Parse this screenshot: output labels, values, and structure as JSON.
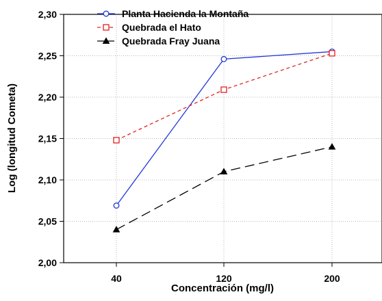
{
  "chart_data": {
    "type": "line",
    "xlabel": "Concentración (mg/l)",
    "ylabel": "Log (longitud Cometa)",
    "categories": [
      "40",
      "120",
      "200"
    ],
    "ylim": [
      2.0,
      2.3
    ],
    "yticks": [
      "2,00",
      "2,05",
      "2,10",
      "2,15",
      "2,20",
      "2,25",
      "2,30"
    ],
    "grid": true,
    "legend_position": "top",
    "series": [
      {
        "name": "Planta Hacienda la Montaña",
        "values": [
          2.069,
          2.246,
          2.255
        ],
        "color": "#1f35d6",
        "marker": "circle",
        "line_style": "solid"
      },
      {
        "name": "Quebrada el Hato",
        "values": [
          2.148,
          2.209,
          2.253
        ],
        "color": "#e02020",
        "marker": "square",
        "line_style": "dashed"
      },
      {
        "name": "Quebrada Fray Juana",
        "values": [
          2.04,
          2.11,
          2.14
        ],
        "color": "#000000",
        "marker": "triangle",
        "line_style": "dash-long"
      }
    ]
  }
}
